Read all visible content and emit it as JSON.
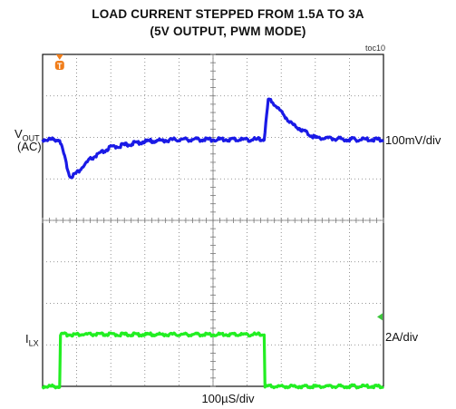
{
  "chart_data": {
    "type": "line",
    "title": [
      "LOAD CURRENT STEPPED FROM 1.5A TO 3A",
      "(5V OUTPUT, PWM MODE)"
    ],
    "figure_id": "toc10",
    "xlabel": "100µS/div",
    "trigger_marker": "T",
    "grid": true,
    "series": [
      {
        "name": "V_OUT (AC)",
        "label_main": "V",
        "label_sub": "OUT",
        "label_line2": "(AC)",
        "scale": "100mV/div",
        "color": "#1a1ae6",
        "x": [
          0,
          0.4,
          0.5,
          0.8,
          1.0,
          1.4,
          2.0,
          3.0,
          4.0,
          5.0,
          6.0,
          6.5,
          6.62,
          6.75,
          7.0,
          7.3,
          7.7,
          8.0,
          9.0,
          10.0
        ],
        "y": [
          0,
          0,
          0,
          -0.95,
          -0.85,
          -0.5,
          -0.2,
          -0.05,
          0,
          0,
          0,
          0,
          1.0,
          0.95,
          0.7,
          0.4,
          0.2,
          0.05,
          0,
          0
        ]
      },
      {
        "name": "I_LX",
        "label_main": "I",
        "label_sub": "LX",
        "scale": "2A/div",
        "color": "#22ee22",
        "x": [
          0,
          0.5,
          0.5,
          6.5,
          6.5,
          10.0
        ],
        "y": [
          -4.0,
          -4.0,
          -2.75,
          -2.75,
          -4.0,
          -4.0
        ]
      }
    ]
  }
}
